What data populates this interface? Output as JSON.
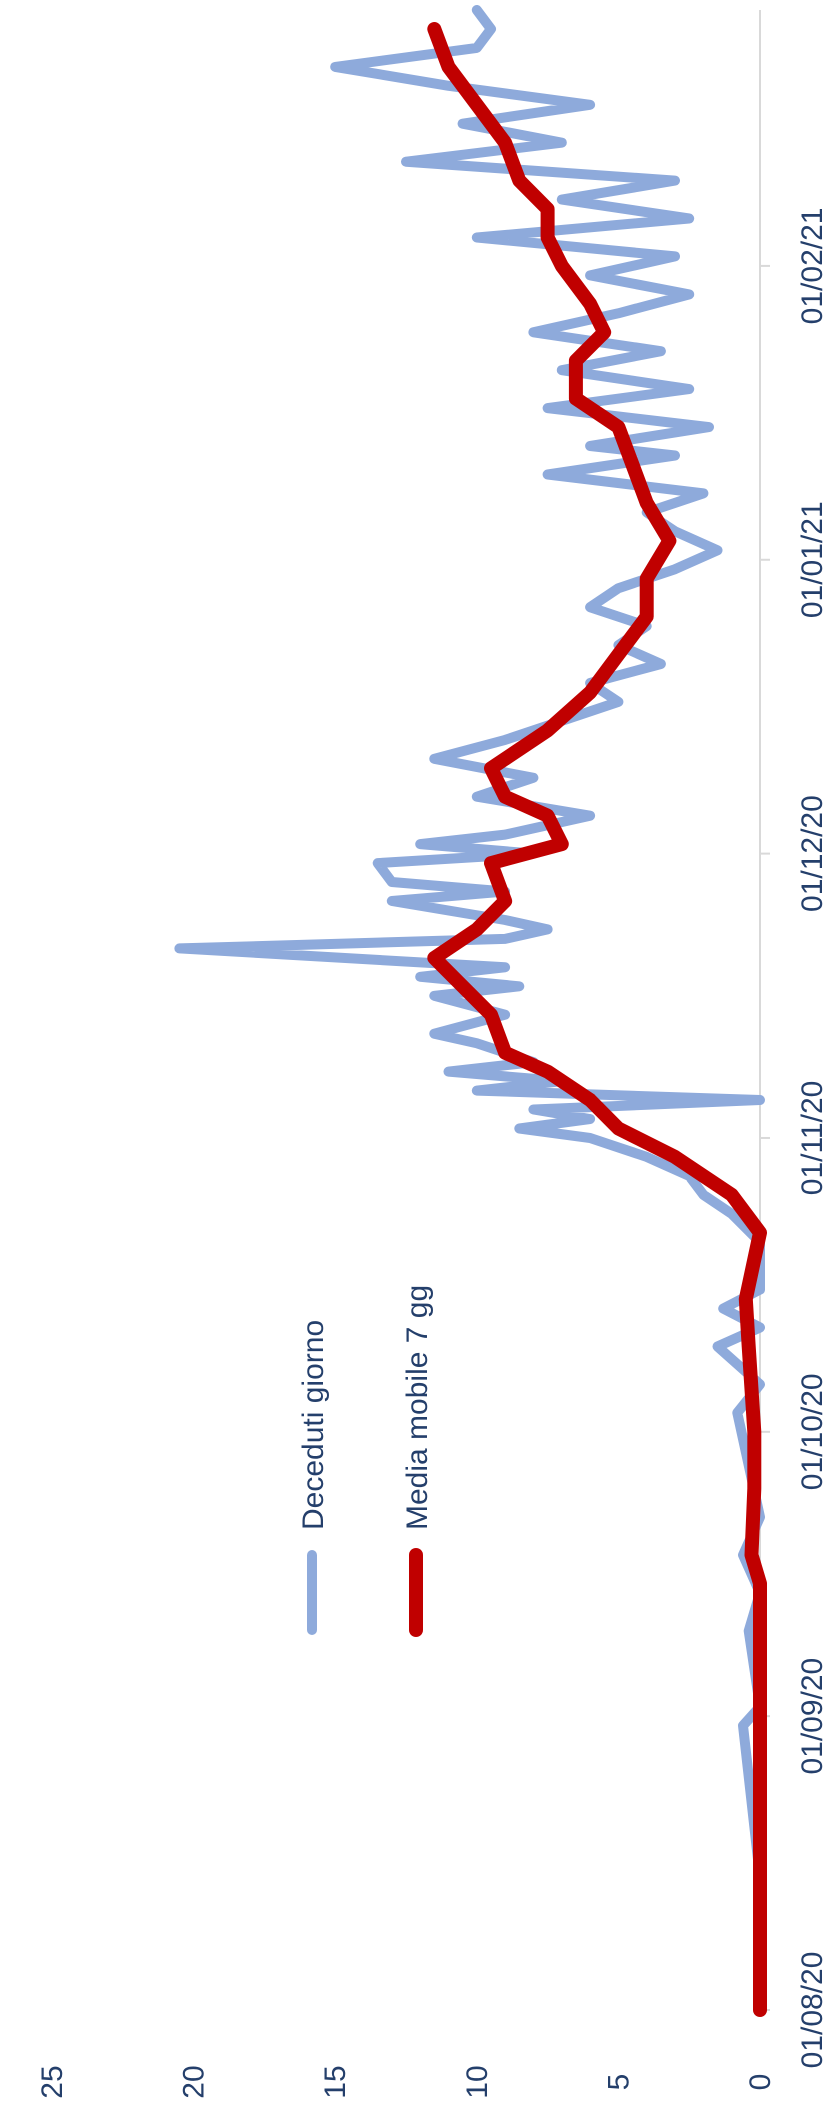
{
  "chart_data": {
    "type": "line",
    "title": "",
    "xlabel": "",
    "ylabel": "",
    "orientation": "rotated-90-clockwise",
    "ylim": [
      0,
      25
    ],
    "y_ticks": [
      "0",
      "5",
      "10",
      "15",
      "20",
      "25"
    ],
    "x_range": [
      "2020-08-01",
      "2021-02-28"
    ],
    "x_ticks": [
      "01/08/20",
      "01/09/20",
      "01/10/20",
      "01/11/20",
      "01/12/20",
      "01/01/21",
      "01/02/21"
    ],
    "grid": false,
    "legend_position": "inside-left",
    "series": [
      {
        "name": "Deceduti giorno",
        "color": "#8eaadb",
        "points": [
          [
            "2020-08-01",
            0
          ],
          [
            "2020-08-15",
            0
          ],
          [
            "2020-08-31",
            0.6
          ],
          [
            "2020-09-02",
            0
          ],
          [
            "2020-09-10",
            0.4
          ],
          [
            "2020-09-14",
            0
          ],
          [
            "2020-09-18",
            0.6
          ],
          [
            "2020-09-22",
            0
          ],
          [
            "2020-10-03",
            0.8
          ],
          [
            "2020-10-06",
            0
          ],
          [
            "2020-10-10",
            1.5
          ],
          [
            "2020-10-12",
            0
          ],
          [
            "2020-10-14",
            1.3
          ],
          [
            "2020-10-16",
            0
          ],
          [
            "2020-10-21",
            0
          ],
          [
            "2020-10-24",
            1
          ],
          [
            "2020-10-26",
            2
          ],
          [
            "2020-10-28",
            2.5
          ],
          [
            "2020-10-30",
            4
          ],
          [
            "2020-11-01",
            6
          ],
          [
            "2020-11-02",
            8.5
          ],
          [
            "2020-11-03",
            6
          ],
          [
            "2020-11-04",
            8
          ],
          [
            "2020-11-05",
            0
          ],
          [
            "2020-11-06",
            10
          ],
          [
            "2020-11-07",
            7
          ],
          [
            "2020-11-08",
            11
          ],
          [
            "2020-11-09",
            8
          ],
          [
            "2020-11-11",
            10
          ],
          [
            "2020-11-12",
            11.5
          ],
          [
            "2020-11-14",
            9
          ],
          [
            "2020-11-16",
            11.5
          ],
          [
            "2020-11-17",
            8.5
          ],
          [
            "2020-11-18",
            12
          ],
          [
            "2020-11-19",
            9
          ],
          [
            "2020-11-21",
            20.5
          ],
          [
            "2020-11-22",
            9
          ],
          [
            "2020-11-23",
            7.5
          ],
          [
            "2020-11-24",
            9
          ],
          [
            "2020-11-26",
            13
          ],
          [
            "2020-11-27",
            9
          ],
          [
            "2020-11-28",
            13
          ],
          [
            "2020-11-30",
            13.5
          ],
          [
            "2020-12-01",
            8
          ],
          [
            "2020-12-02",
            12
          ],
          [
            "2020-12-03",
            9
          ],
          [
            "2020-12-05",
            6
          ],
          [
            "2020-12-07",
            10
          ],
          [
            "2020-12-09",
            8
          ],
          [
            "2020-12-11",
            11.5
          ],
          [
            "2020-12-13",
            9
          ],
          [
            "2020-12-15",
            7
          ],
          [
            "2020-12-17",
            5
          ],
          [
            "2020-12-19",
            6
          ],
          [
            "2020-12-21",
            3.5
          ],
          [
            "2020-12-23",
            5
          ],
          [
            "2020-12-25",
            4
          ],
          [
            "2020-12-27",
            6
          ],
          [
            "2020-12-29",
            5
          ],
          [
            "2020-12-31",
            3
          ],
          [
            "2021-01-02",
            1.5
          ],
          [
            "2021-01-04",
            3
          ],
          [
            "2021-01-06",
            4
          ],
          [
            "2021-01-08",
            2
          ],
          [
            "2021-01-10",
            7.5
          ],
          [
            "2021-01-12",
            3
          ],
          [
            "2021-01-13",
            6
          ],
          [
            "2021-01-15",
            1.8
          ],
          [
            "2021-01-17",
            7.5
          ],
          [
            "2021-01-19",
            2.5
          ],
          [
            "2021-01-21",
            7
          ],
          [
            "2021-01-23",
            3.5
          ],
          [
            "2021-01-25",
            8
          ],
          [
            "2021-01-27",
            5
          ],
          [
            "2021-01-29",
            2.5
          ],
          [
            "2021-01-31",
            6
          ],
          [
            "2021-02-02",
            3
          ],
          [
            "2021-02-04",
            10
          ],
          [
            "2021-02-06",
            2.5
          ],
          [
            "2021-02-08",
            7
          ],
          [
            "2021-02-10",
            3
          ],
          [
            "2021-02-12",
            12.5
          ],
          [
            "2021-02-14",
            7
          ],
          [
            "2021-02-16",
            10.5
          ],
          [
            "2021-02-18",
            6
          ],
          [
            "2021-02-20",
            11
          ],
          [
            "2021-02-22",
            15
          ],
          [
            "2021-02-24",
            10
          ],
          [
            "2021-02-26",
            9.5
          ],
          [
            "2021-02-28",
            10
          ]
        ]
      },
      {
        "name": "Media mobile 7 gg",
        "color": "#c00000",
        "points": [
          [
            "2020-08-01",
            0
          ],
          [
            "2020-09-15",
            0
          ],
          [
            "2020-09-18",
            0.3
          ],
          [
            "2020-09-25",
            0.2
          ],
          [
            "2020-10-01",
            0.2
          ],
          [
            "2020-10-10",
            0.4
          ],
          [
            "2020-10-15",
            0.5
          ],
          [
            "2020-10-22",
            0
          ],
          [
            "2020-10-26",
            1
          ],
          [
            "2020-10-30",
            3
          ],
          [
            "2020-11-02",
            5
          ],
          [
            "2020-11-05",
            6
          ],
          [
            "2020-11-08",
            7.5
          ],
          [
            "2020-11-10",
            9
          ],
          [
            "2020-11-14",
            9.5
          ],
          [
            "2020-11-17",
            10.5
          ],
          [
            "2020-11-20",
            11.5
          ],
          [
            "2020-11-23",
            10
          ],
          [
            "2020-11-26",
            9
          ],
          [
            "2020-11-30",
            9.5
          ],
          [
            "2020-12-02",
            7
          ],
          [
            "2020-12-05",
            7.5
          ],
          [
            "2020-12-07",
            9
          ],
          [
            "2020-12-10",
            9.5
          ],
          [
            "2020-12-14",
            7.5
          ],
          [
            "2020-12-18",
            6
          ],
          [
            "2020-12-22",
            5
          ],
          [
            "2020-12-26",
            4
          ],
          [
            "2020-12-30",
            4
          ],
          [
            "2021-01-03",
            3.2
          ],
          [
            "2021-01-07",
            4
          ],
          [
            "2021-01-11",
            4.5
          ],
          [
            "2021-01-15",
            5
          ],
          [
            "2021-01-18",
            6.5
          ],
          [
            "2021-01-22",
            6.5
          ],
          [
            "2021-01-25",
            5.5
          ],
          [
            "2021-01-28",
            6
          ],
          [
            "2021-02-01",
            7
          ],
          [
            "2021-02-04",
            7.5
          ],
          [
            "2021-02-07",
            7.5
          ],
          [
            "2021-02-10",
            8.5
          ],
          [
            "2021-02-14",
            9
          ],
          [
            "2021-02-18",
            10
          ],
          [
            "2021-02-22",
            11
          ],
          [
            "2021-02-26",
            11.5
          ]
        ]
      }
    ]
  }
}
